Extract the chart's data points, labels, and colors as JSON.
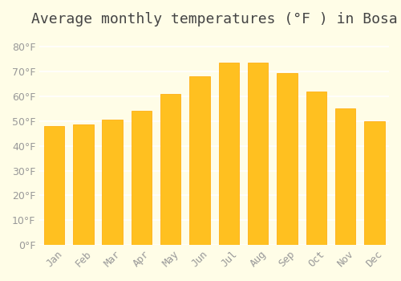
{
  "title": "Average monthly temperatures (°F ) in Bosa",
  "months": [
    "Jan",
    "Feb",
    "Mar",
    "Apr",
    "May",
    "Jun",
    "Jul",
    "Aug",
    "Sep",
    "Oct",
    "Nov",
    "Dec"
  ],
  "values": [
    48,
    48.5,
    50.5,
    54,
    61,
    68,
    73.5,
    73.5,
    69.5,
    62,
    55,
    50
  ],
  "bar_color": "#FFC020",
  "bar_edge_color": "#FFA500",
  "background_color": "#FFFDE7",
  "grid_color": "#FFFFFF",
  "text_color": "#999999",
  "ylim": [
    0,
    85
  ],
  "yticks": [
    0,
    10,
    20,
    30,
    40,
    50,
    60,
    70,
    80
  ],
  "title_fontsize": 13,
  "tick_fontsize": 9
}
